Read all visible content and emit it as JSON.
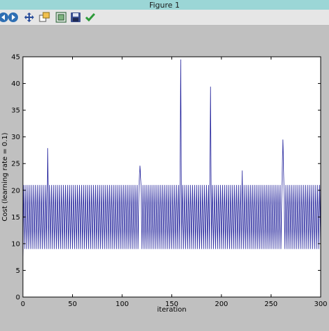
{
  "window": {
    "title": "Figure 1"
  },
  "toolbar": {
    "buttons": [
      {
        "name": "back-button",
        "icon": "back-arrow-icon"
      },
      {
        "name": "forward-button",
        "icon": "forward-arrow-icon"
      },
      {
        "name": "pan-button",
        "icon": "pan-move-icon"
      },
      {
        "name": "zoom-button",
        "icon": "zoom-rect-icon"
      },
      {
        "name": "subplots-button",
        "icon": "configure-subplots-icon"
      },
      {
        "name": "save-button",
        "icon": "floppy-disk-icon"
      },
      {
        "name": "edit-button",
        "icon": "checkmark-icon"
      }
    ]
  },
  "chart_data": {
    "type": "line",
    "xlabel": "iteration",
    "ylabel": "Cost (learning rate = 0.1)",
    "xlim": [
      0,
      300
    ],
    "ylim": [
      0,
      45
    ],
    "xticks": [
      0,
      50,
      100,
      150,
      200,
      250,
      300
    ],
    "yticks": [
      0,
      5,
      10,
      15,
      20,
      25,
      30,
      35,
      40,
      45
    ],
    "line_color": "#1f1f9a",
    "grid": false,
    "oscillation": {
      "low": 9,
      "high": 21,
      "period_iterations": 2
    },
    "start": {
      "x": 0,
      "y": 6.5
    },
    "spikes": [
      {
        "x": 25,
        "y": 27.9
      },
      {
        "x": 118,
        "y": 24.6
      },
      {
        "x": 159,
        "y": 44.5
      },
      {
        "x": 189,
        "y": 39.4
      },
      {
        "x": 221,
        "y": 23.7
      },
      {
        "x": 262,
        "y": 29.5
      }
    ]
  }
}
